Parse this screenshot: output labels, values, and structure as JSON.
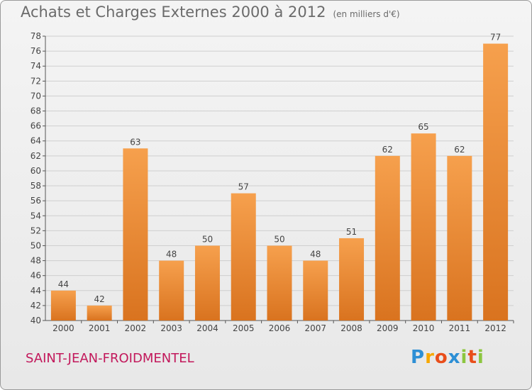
{
  "header": {
    "title": "Achats et Charges Externes 2000 à 2012",
    "subtitle": "(en milliers d'€)"
  },
  "footer": {
    "commune": "SAINT-JEAN-FROIDMENTEL",
    "logo_text": "Proxiti",
    "logo_letters": [
      {
        "char": "P",
        "color": "#2d8fd5"
      },
      {
        "char": "r",
        "color": "#f7a800"
      },
      {
        "char": "o",
        "color": "#e94e1b"
      },
      {
        "char": "x",
        "color": "#2d8fd5"
      },
      {
        "char": "i",
        "color": "#8cc63f"
      },
      {
        "char": "t",
        "color": "#e94e1b"
      },
      {
        "char": "i",
        "color": "#8cc63f"
      }
    ]
  },
  "chart_data": {
    "type": "bar",
    "title": "Achats et Charges Externes 2000 à 2012",
    "subtitle": "(en milliers d'€)",
    "categories": [
      "2000",
      "2001",
      "2002",
      "2003",
      "2004",
      "2005",
      "2006",
      "2007",
      "2008",
      "2009",
      "2010",
      "2011",
      "2012"
    ],
    "values": [
      44,
      42,
      63,
      48,
      50,
      57,
      50,
      48,
      51,
      62,
      65,
      62,
      77
    ],
    "ylim": [
      40,
      78
    ],
    "yticks": [
      40,
      42,
      44,
      46,
      48,
      50,
      52,
      54,
      56,
      58,
      60,
      62,
      64,
      66,
      68,
      70,
      72,
      74,
      76,
      78
    ],
    "grid": true,
    "bar_color_top": "#f6a04d",
    "bar_color_bottom": "#d9731f",
    "legend": "none"
  }
}
